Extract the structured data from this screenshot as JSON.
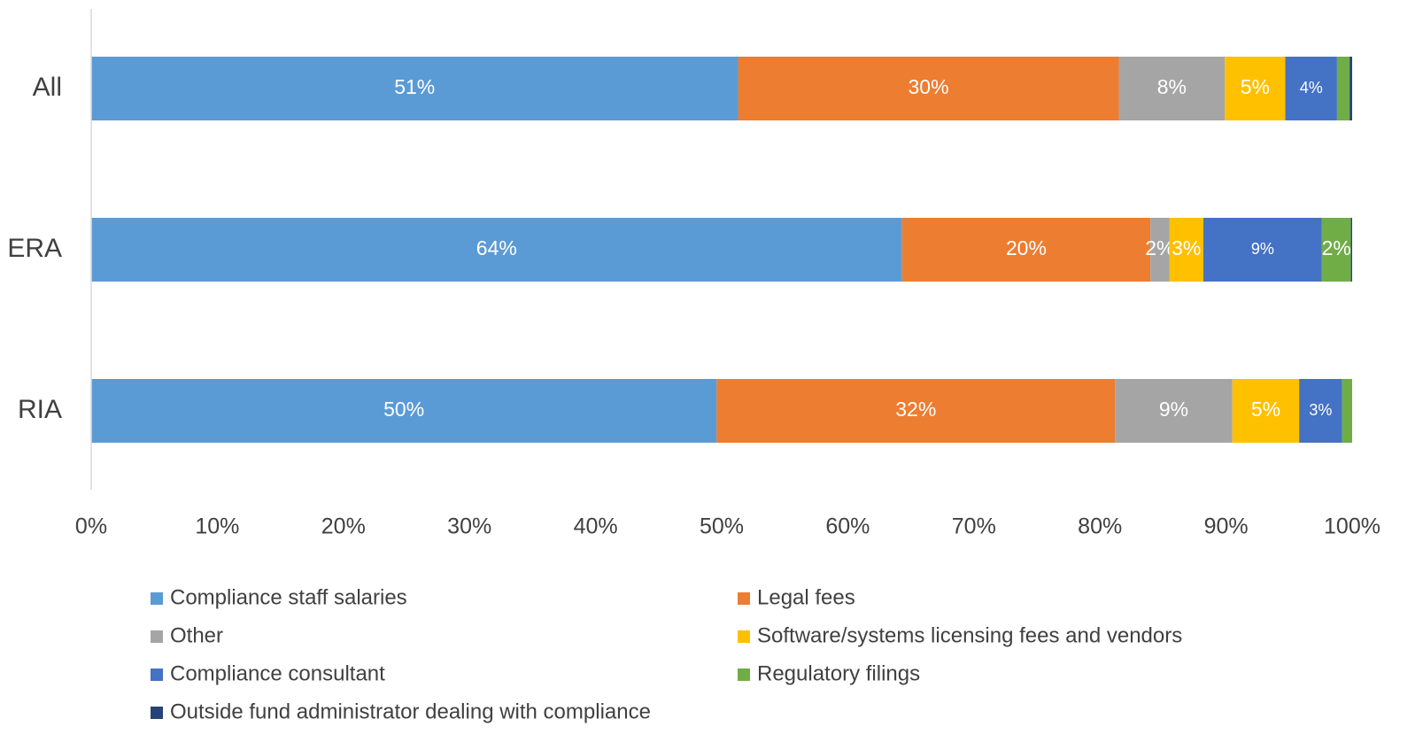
{
  "chart_data": {
    "type": "stacked_barh",
    "categories": [
      "All",
      "ERA",
      "RIA"
    ],
    "series": [
      {
        "name": "Compliance staff salaries",
        "color": "#5b9bd5",
        "values": [
          51.3,
          64.3,
          49.6
        ],
        "value_labels": [
          "51%",
          "64%",
          "50%"
        ]
      },
      {
        "name": "Legal fees",
        "color": "#ed7d31",
        "values": [
          30.2,
          19.7,
          31.6
        ],
        "value_labels": [
          "30%",
          "20%",
          "32%"
        ]
      },
      {
        "name": "Other",
        "color": "#a5a5a5",
        "values": [
          8.4,
          1.5,
          9.3
        ],
        "value_labels": [
          "8%",
          "2%",
          "9%"
        ]
      },
      {
        "name": "Software/systems licensing fees and vendors",
        "color": "#ffc000",
        "values": [
          4.8,
          2.7,
          5.3
        ],
        "value_labels": [
          "5%",
          "3%",
          "5%"
        ]
      },
      {
        "name": "Compliance consultant",
        "color": "#4472c4",
        "values": [
          4.1,
          9.4,
          3.4
        ],
        "value_labels": [
          "4%",
          "9%",
          "3%"
        ]
      },
      {
        "name": "Regulatory filings",
        "color": "#70ad47",
        "values": [
          1.0,
          2.3,
          0.8
        ],
        "value_labels": [
          null,
          "2%",
          null
        ]
      },
      {
        "name": "Outside fund administrator dealing with compliance",
        "color": "#264478",
        "values": [
          0.2,
          0.1,
          0
        ],
        "value_labels": [
          null,
          null,
          null
        ]
      }
    ],
    "xlim": [
      0,
      100
    ],
    "xticks": [
      {
        "value": 0,
        "label": "0%"
      },
      {
        "value": 10,
        "label": "10%"
      },
      {
        "value": 20,
        "label": "20%"
      },
      {
        "value": 30,
        "label": "30%"
      },
      {
        "value": 40,
        "label": "40%"
      },
      {
        "value": 50,
        "label": "50%"
      },
      {
        "value": 60,
        "label": "60%"
      },
      {
        "value": 70,
        "label": "70%"
      },
      {
        "value": 80,
        "label": "80%"
      },
      {
        "value": 90,
        "label": "90%"
      },
      {
        "value": 100,
        "label": "100%"
      }
    ],
    "grid": false,
    "legend": "bottom"
  }
}
